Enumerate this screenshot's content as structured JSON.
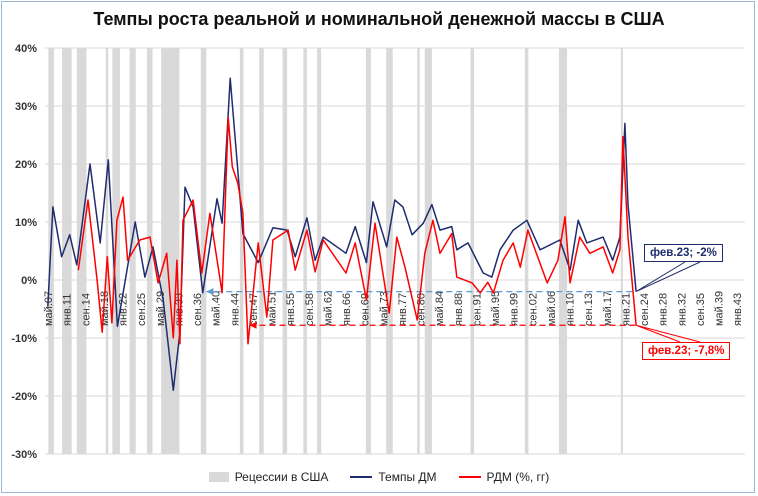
{
  "chart_data": {
    "type": "line",
    "title": "Темпы роста реальной и номинальной денежной массы в США",
    "xlabel": "",
    "ylabel": "",
    "ylim": [
      -30,
      40
    ],
    "xlim": [
      1907.33,
      2044
    ],
    "y_ticks": [
      "-30%",
      "-20%",
      "-10%",
      "0%",
      "10%",
      "20%",
      "30%",
      "40%"
    ],
    "y_tick_values": [
      -30,
      -20,
      -10,
      0,
      10,
      20,
      30,
      40
    ],
    "x_tick_labels": [
      "май.07",
      "янв.11",
      "сен.14",
      "май.18",
      "янв.22",
      "сен.25",
      "май.29",
      "янв.33",
      "сен.36",
      "май.40",
      "янв.44",
      "сен.47",
      "май.51",
      "янв.55",
      "сен.58",
      "май.62",
      "янв.66",
      "сен.69",
      "май.73",
      "янв.77",
      "сен.80",
      "май.84",
      "янв.88",
      "сен.91",
      "май.95",
      "янв.99",
      "сен.02",
      "май.06",
      "янв.10",
      "сен.13",
      "май.17",
      "янв.21",
      "сен.24",
      "янв.28",
      "янв.32",
      "сен.35",
      "май.39",
      "янв.43"
    ],
    "grid": true,
    "legend_placement": "bottom",
    "recessions": [
      [
        1907.4,
        1908.5
      ],
      [
        1910.1,
        1912.0
      ],
      [
        1913.0,
        1914.9
      ],
      [
        1918.7,
        1919.2
      ],
      [
        1920.0,
        1921.5
      ],
      [
        1923.4,
        1924.6
      ],
      [
        1926.8,
        1927.9
      ],
      [
        1929.6,
        1933.2
      ],
      [
        1937.4,
        1938.5
      ],
      [
        1945.1,
        1945.8
      ],
      [
        1948.9,
        1949.8
      ],
      [
        1953.5,
        1954.4
      ],
      [
        1957.6,
        1958.3
      ],
      [
        1960.3,
        1961.1
      ],
      [
        1969.9,
        1970.9
      ],
      [
        1973.9,
        1975.2
      ],
      [
        1980.0,
        1980.5
      ],
      [
        1981.5,
        1982.9
      ],
      [
        1990.5,
        1991.2
      ],
      [
        2001.2,
        2001.9
      ],
      [
        2007.9,
        2009.5
      ],
      [
        2020.1,
        2020.3
      ]
    ],
    "series": [
      {
        "name": "Темпы ДМ",
        "color": "#1f2d6e",
        "x": [
          1907.3,
          1908.3,
          1910,
          1911.6,
          1913,
          1915.6,
          1917.6,
          1919.2,
          1921,
          1924.5,
          1926.4,
          1928,
          1930,
          1932,
          1933.3,
          1934.3,
          1935.9,
          1937.8,
          1940.6,
          1941.6,
          1943.2,
          1944.5,
          1945.7,
          1948.7,
          1951.6,
          1954.4,
          1956,
          1958.3,
          1959.9,
          1961.5,
          1966,
          1967.8,
          1970,
          1971.3,
          1974,
          1975.6,
          1977.2,
          1979,
          1981.2,
          1982.9,
          1984.5,
          1986.8,
          1987.8,
          1990,
          1993,
          1994.7,
          1996.3,
          1998.9,
          2001.6,
          2004.2,
          2008.1,
          2010.1,
          2011.7,
          2013.4,
          2016.6,
          2018.5,
          2019.9,
          2020.9,
          2021.5,
          2023.1
        ],
        "y": [
          -4.6,
          12.6,
          4,
          7.8,
          2.6,
          20,
          6.4,
          20.7,
          -8,
          10,
          0.5,
          5.7,
          -3.4,
          -19,
          -9,
          16,
          12.6,
          -2.2,
          14,
          9.8,
          34.8,
          21,
          8,
          3,
          9,
          8.6,
          4,
          10.7,
          3.4,
          7.4,
          4.6,
          9.2,
          3,
          13.5,
          5.7,
          13.8,
          12.6,
          7.8,
          9.8,
          13,
          8.6,
          9.2,
          5.2,
          6.4,
          1.2,
          0.5,
          5.2,
          8.6,
          10.3,
          5.2,
          6.9,
          1.7,
          10.3,
          6.4,
          7.4,
          3.4,
          7.4,
          27,
          13,
          -2
        ]
      },
      {
        "name": "РДМ (%, гг)",
        "color": "#ff0000",
        "x": [
          1913.3,
          1915.2,
          1917,
          1918,
          1919,
          1919.9,
          1920.9,
          1922.1,
          1923,
          1925.4,
          1927.4,
          1929,
          1930.7,
          1932,
          1932.7,
          1933.3,
          1933.9,
          1935.9,
          1937.6,
          1939.2,
          1941.6,
          1942.8,
          1943.6,
          1944.7,
          1945.7,
          1946.7,
          1948.7,
          1950.4,
          1951.6,
          1954.6,
          1956,
          1958.3,
          1959.9,
          1961.5,
          1966,
          1967.8,
          1970,
          1971.7,
          1974.5,
          1976,
          1977.6,
          1980,
          1981.5,
          1983.1,
          1984.5,
          1986.8,
          1987.8,
          1990.8,
          1992.4,
          1993.9,
          1995,
          1996.9,
          1998.9,
          2000.3,
          2001.8,
          2005.6,
          2007.7,
          2009.1,
          2010.1,
          2012,
          2014,
          2016.6,
          2018.5,
          2019.9,
          2020.5,
          2021.5,
          2023.1
        ],
        "y": [
          1.7,
          13.8,
          0,
          -9,
          4,
          -7.4,
          10.3,
          14.3,
          3.4,
          6.9,
          7.4,
          -0.5,
          4.6,
          -10,
          3.4,
          -11,
          10.3,
          13.8,
          1.2,
          11.5,
          -2.2,
          28,
          19.5,
          16.7,
          11.5,
          -11,
          6.4,
          -6.4,
          6.9,
          8.6,
          1.7,
          8.6,
          1.4,
          6.9,
          1.2,
          6.4,
          -3.4,
          9.8,
          -5.7,
          7.4,
          2.2,
          -6.9,
          4.6,
          10.3,
          4.6,
          8,
          0.5,
          -0.5,
          -2.2,
          -0.4,
          -2.2,
          3.4,
          6.4,
          2.2,
          8.6,
          -0.5,
          3.4,
          10.9,
          -0.5,
          7.4,
          4.6,
          5.7,
          1.2,
          5.2,
          24.7,
          7.4,
          -7.8
        ]
      }
    ],
    "annotations": [
      {
        "text": "фев.23; -2%",
        "x": 2023.1,
        "y": -2,
        "color": "#1f2d6e",
        "line_color": "#5b9bd5",
        "line_from_x": 1938.5
      },
      {
        "text": "фев.23; -7,8%",
        "x": 2023.1,
        "y": -7.8,
        "color": "#ff0000",
        "line_color": "#ff0000",
        "line_from_x": 1947
      }
    ],
    "legend": [
      "Рецессии в США",
      "Темпы ДМ",
      "РДМ (%, гг)"
    ]
  }
}
